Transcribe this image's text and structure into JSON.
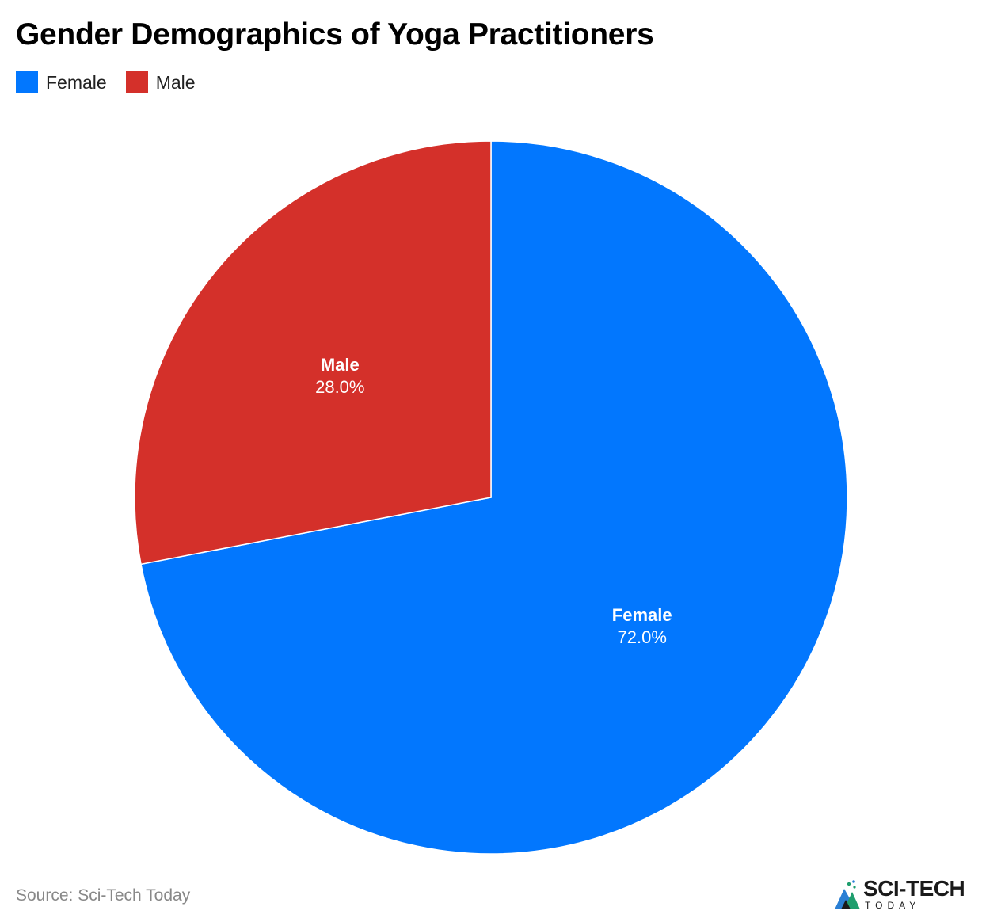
{
  "chart_data": {
    "type": "pie",
    "title": "Gender Demographics of Yoga Practitioners",
    "legend_position": "top-left",
    "slices": [
      {
        "name": "Female",
        "value": 72.0,
        "value_label": "72.0%",
        "color": "#0277FE"
      },
      {
        "name": "Male",
        "value": 28.0,
        "value_label": "28.0%",
        "color": "#D4302A"
      }
    ]
  },
  "footer": {
    "source": "Source: Sci-Tech Today",
    "brand_name": "SCI-TECH",
    "brand_sub": "TODAY"
  }
}
